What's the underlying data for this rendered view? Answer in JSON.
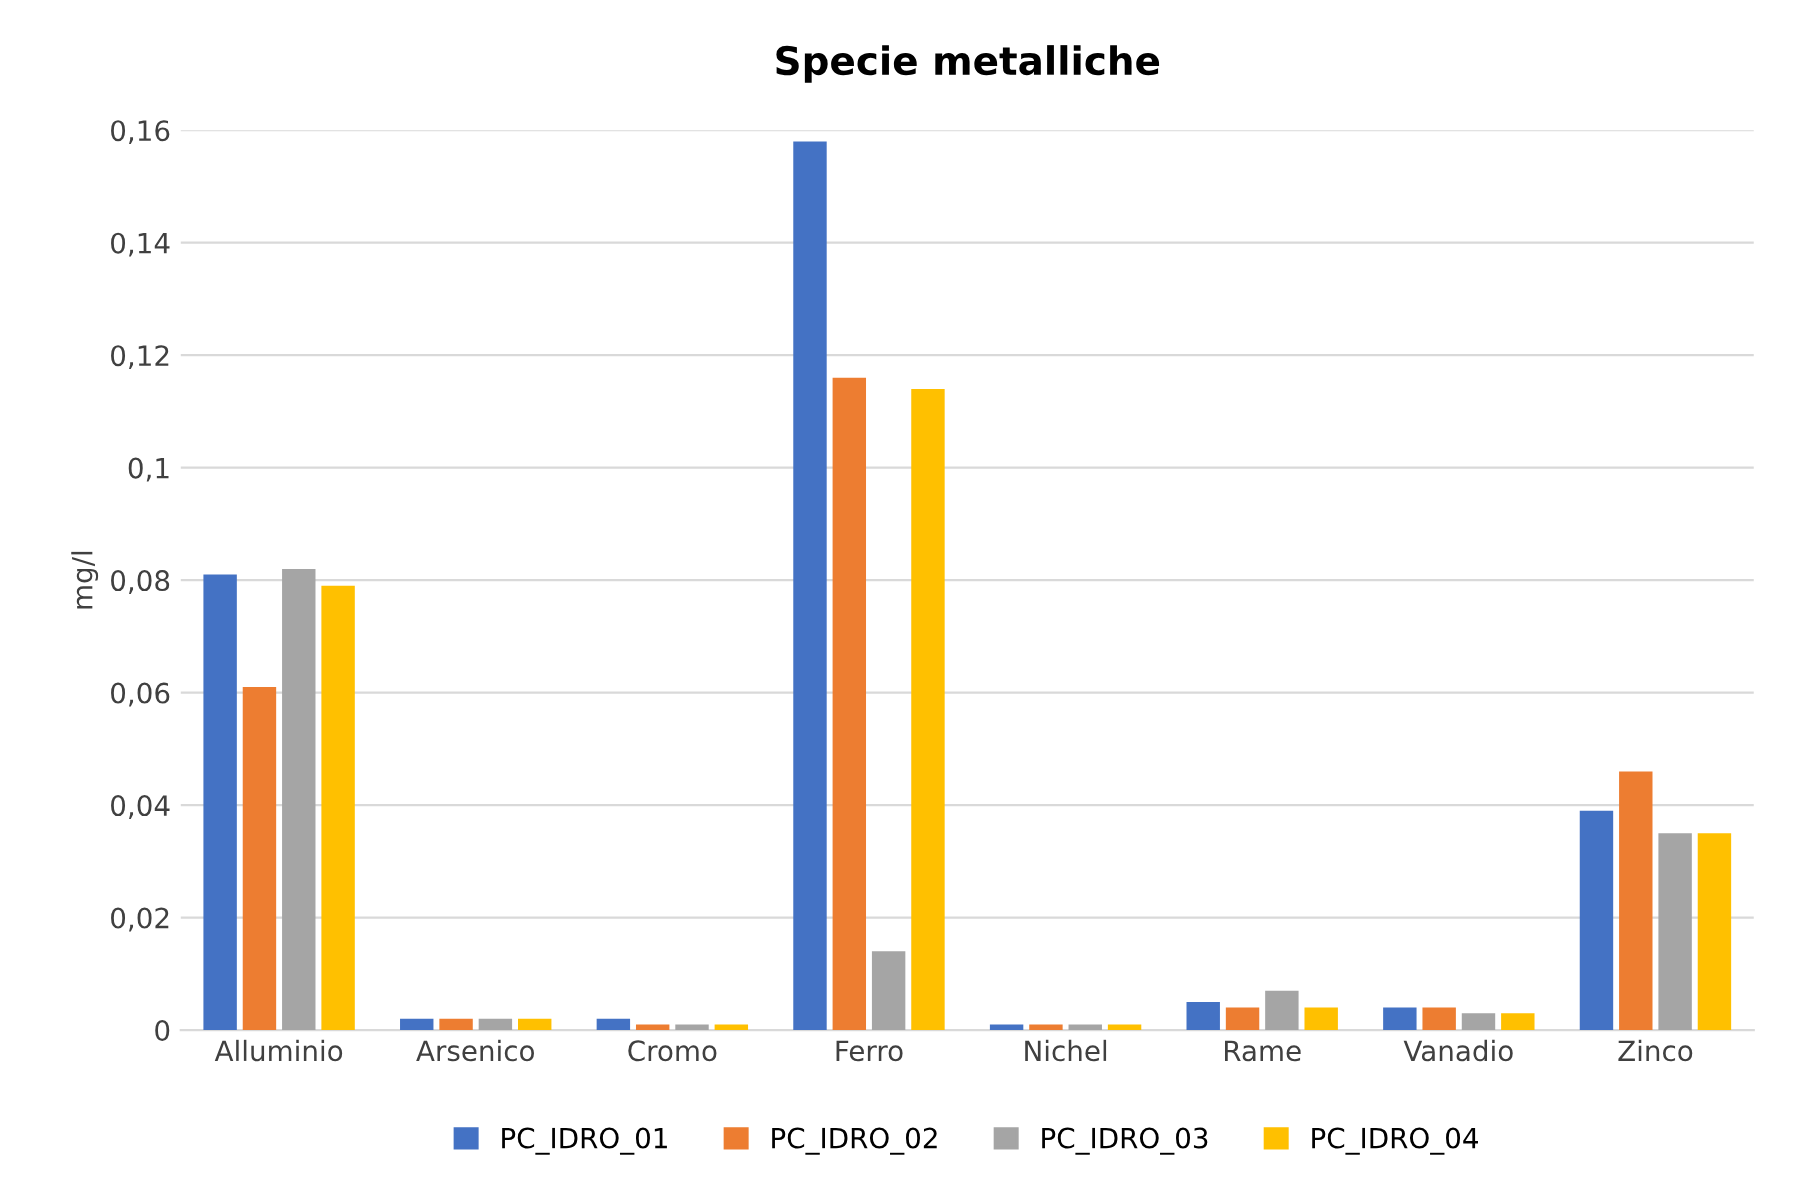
{
  "chart_data": {
    "type": "bar",
    "title": "Specie metalliche",
    "ylabel": "mg/l",
    "categories": [
      "Alluminio",
      "Arsenico",
      "Cromo",
      "Ferro",
      "Nichel",
      "Rame",
      "Vanadio",
      "Zinco"
    ],
    "series": [
      {
        "name": "PC_IDRO_01",
        "color": "#4472c4",
        "values": [
          0.081,
          0.002,
          0.002,
          0.158,
          0.001,
          0.005,
          0.004,
          0.039
        ]
      },
      {
        "name": "PC_IDRO_02",
        "color": "#ed7d31",
        "values": [
          0.061,
          0.002,
          0.001,
          0.116,
          0.001,
          0.004,
          0.004,
          0.046
        ]
      },
      {
        "name": "PC_IDRO_03",
        "color": "#a5a5a5",
        "values": [
          0.082,
          0.002,
          0.001,
          0.014,
          0.001,
          0.007,
          0.003,
          0.035
        ]
      },
      {
        "name": "PC_IDRO_04",
        "color": "#ffc000",
        "values": [
          0.079,
          0.002,
          0.001,
          0.114,
          0.001,
          0.004,
          0.003,
          0.035
        ]
      }
    ],
    "ylim": [
      0,
      0.16
    ],
    "yticks": [
      {
        "value": 0,
        "label": "0"
      },
      {
        "value": 0.02,
        "label": "0,02"
      },
      {
        "value": 0.04,
        "label": "0,04"
      },
      {
        "value": 0.06,
        "label": "0,06"
      },
      {
        "value": 0.08,
        "label": "0,08"
      },
      {
        "value": 0.1,
        "label": "0,1"
      },
      {
        "value": 0.12,
        "label": "0,12"
      },
      {
        "value": 0.14,
        "label": "0,14"
      },
      {
        "value": 0.16,
        "label": "0,16"
      }
    ],
    "grid": "y",
    "legend": "bottom"
  }
}
